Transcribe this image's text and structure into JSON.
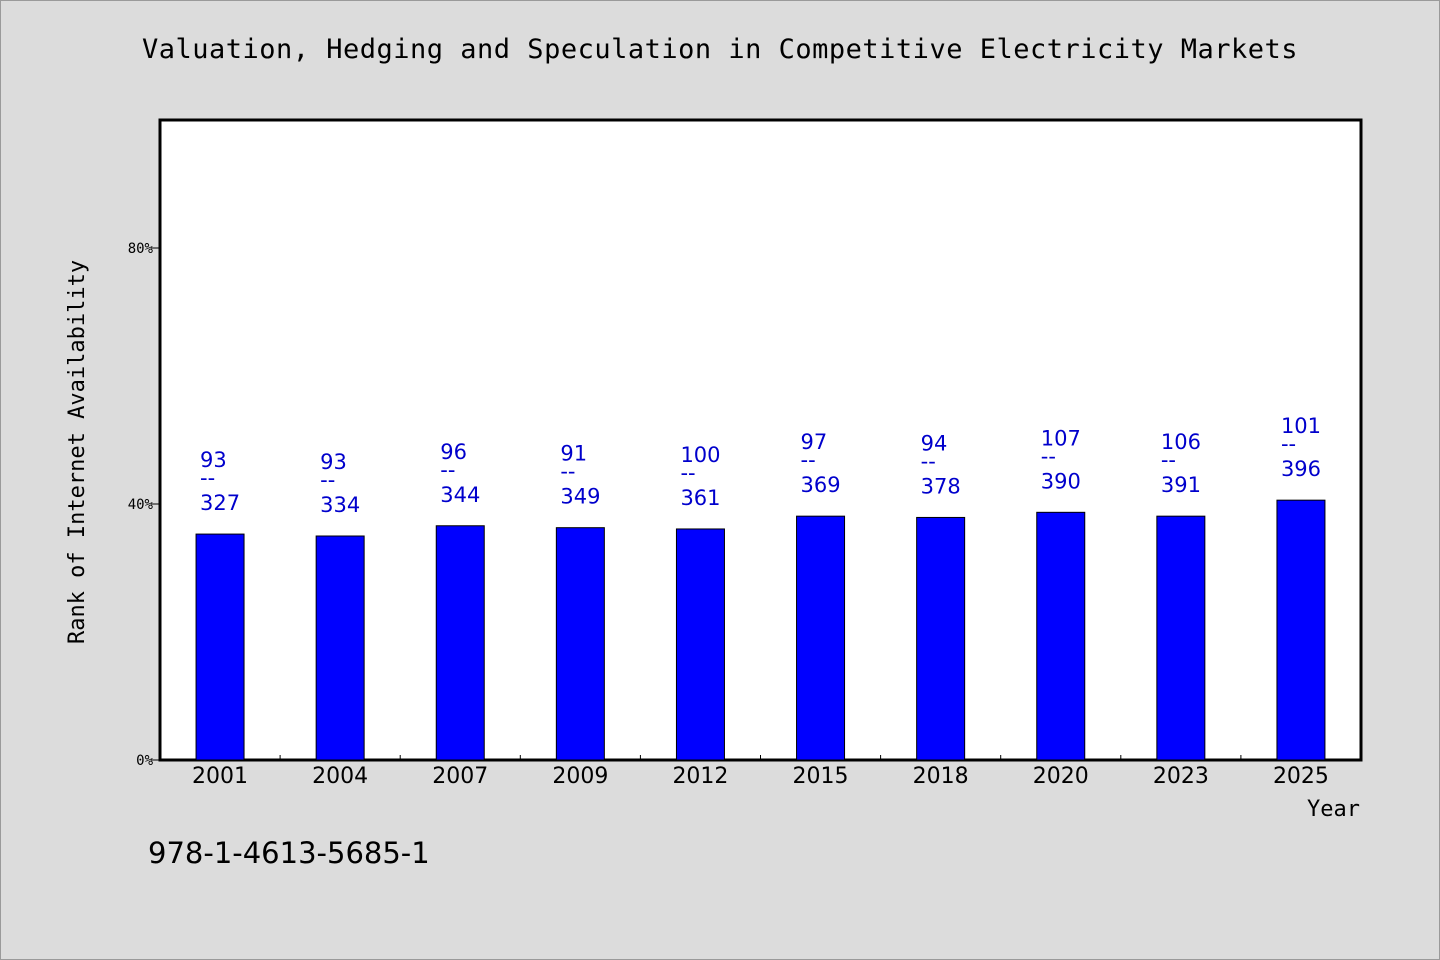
{
  "chart_data": {
    "type": "bar",
    "title": "Valuation, Hedging and Speculation in Competitive Electricity Markets",
    "xlabel": "Year",
    "ylabel": "Rank of Internet Availability",
    "categories": [
      "2001",
      "2004",
      "2007",
      "2009",
      "2012",
      "2015",
      "2018",
      "2020",
      "2023",
      "2025"
    ],
    "values": [
      35.3,
      35.0,
      36.6,
      36.3,
      36.1,
      38.1,
      37.9,
      38.7,
      38.1,
      40.6
    ],
    "ranks": [
      "93",
      "93",
      "96",
      "91",
      "100",
      "97",
      "94",
      "107",
      "106",
      "101"
    ],
    "totals": [
      "327",
      "334",
      "344",
      "349",
      "361",
      "369",
      "378",
      "390",
      "391",
      "396"
    ],
    "separator": "--",
    "yticks": [
      "0%",
      "40%",
      "80%"
    ],
    "ytick_values": [
      0,
      40,
      80
    ],
    "ylim": [
      0,
      100
    ],
    "grid": false,
    "bar_color": "#0000ff",
    "label_color": "#0000cc"
  },
  "footer": {
    "isbn": "978-1-4613-5685-1"
  }
}
